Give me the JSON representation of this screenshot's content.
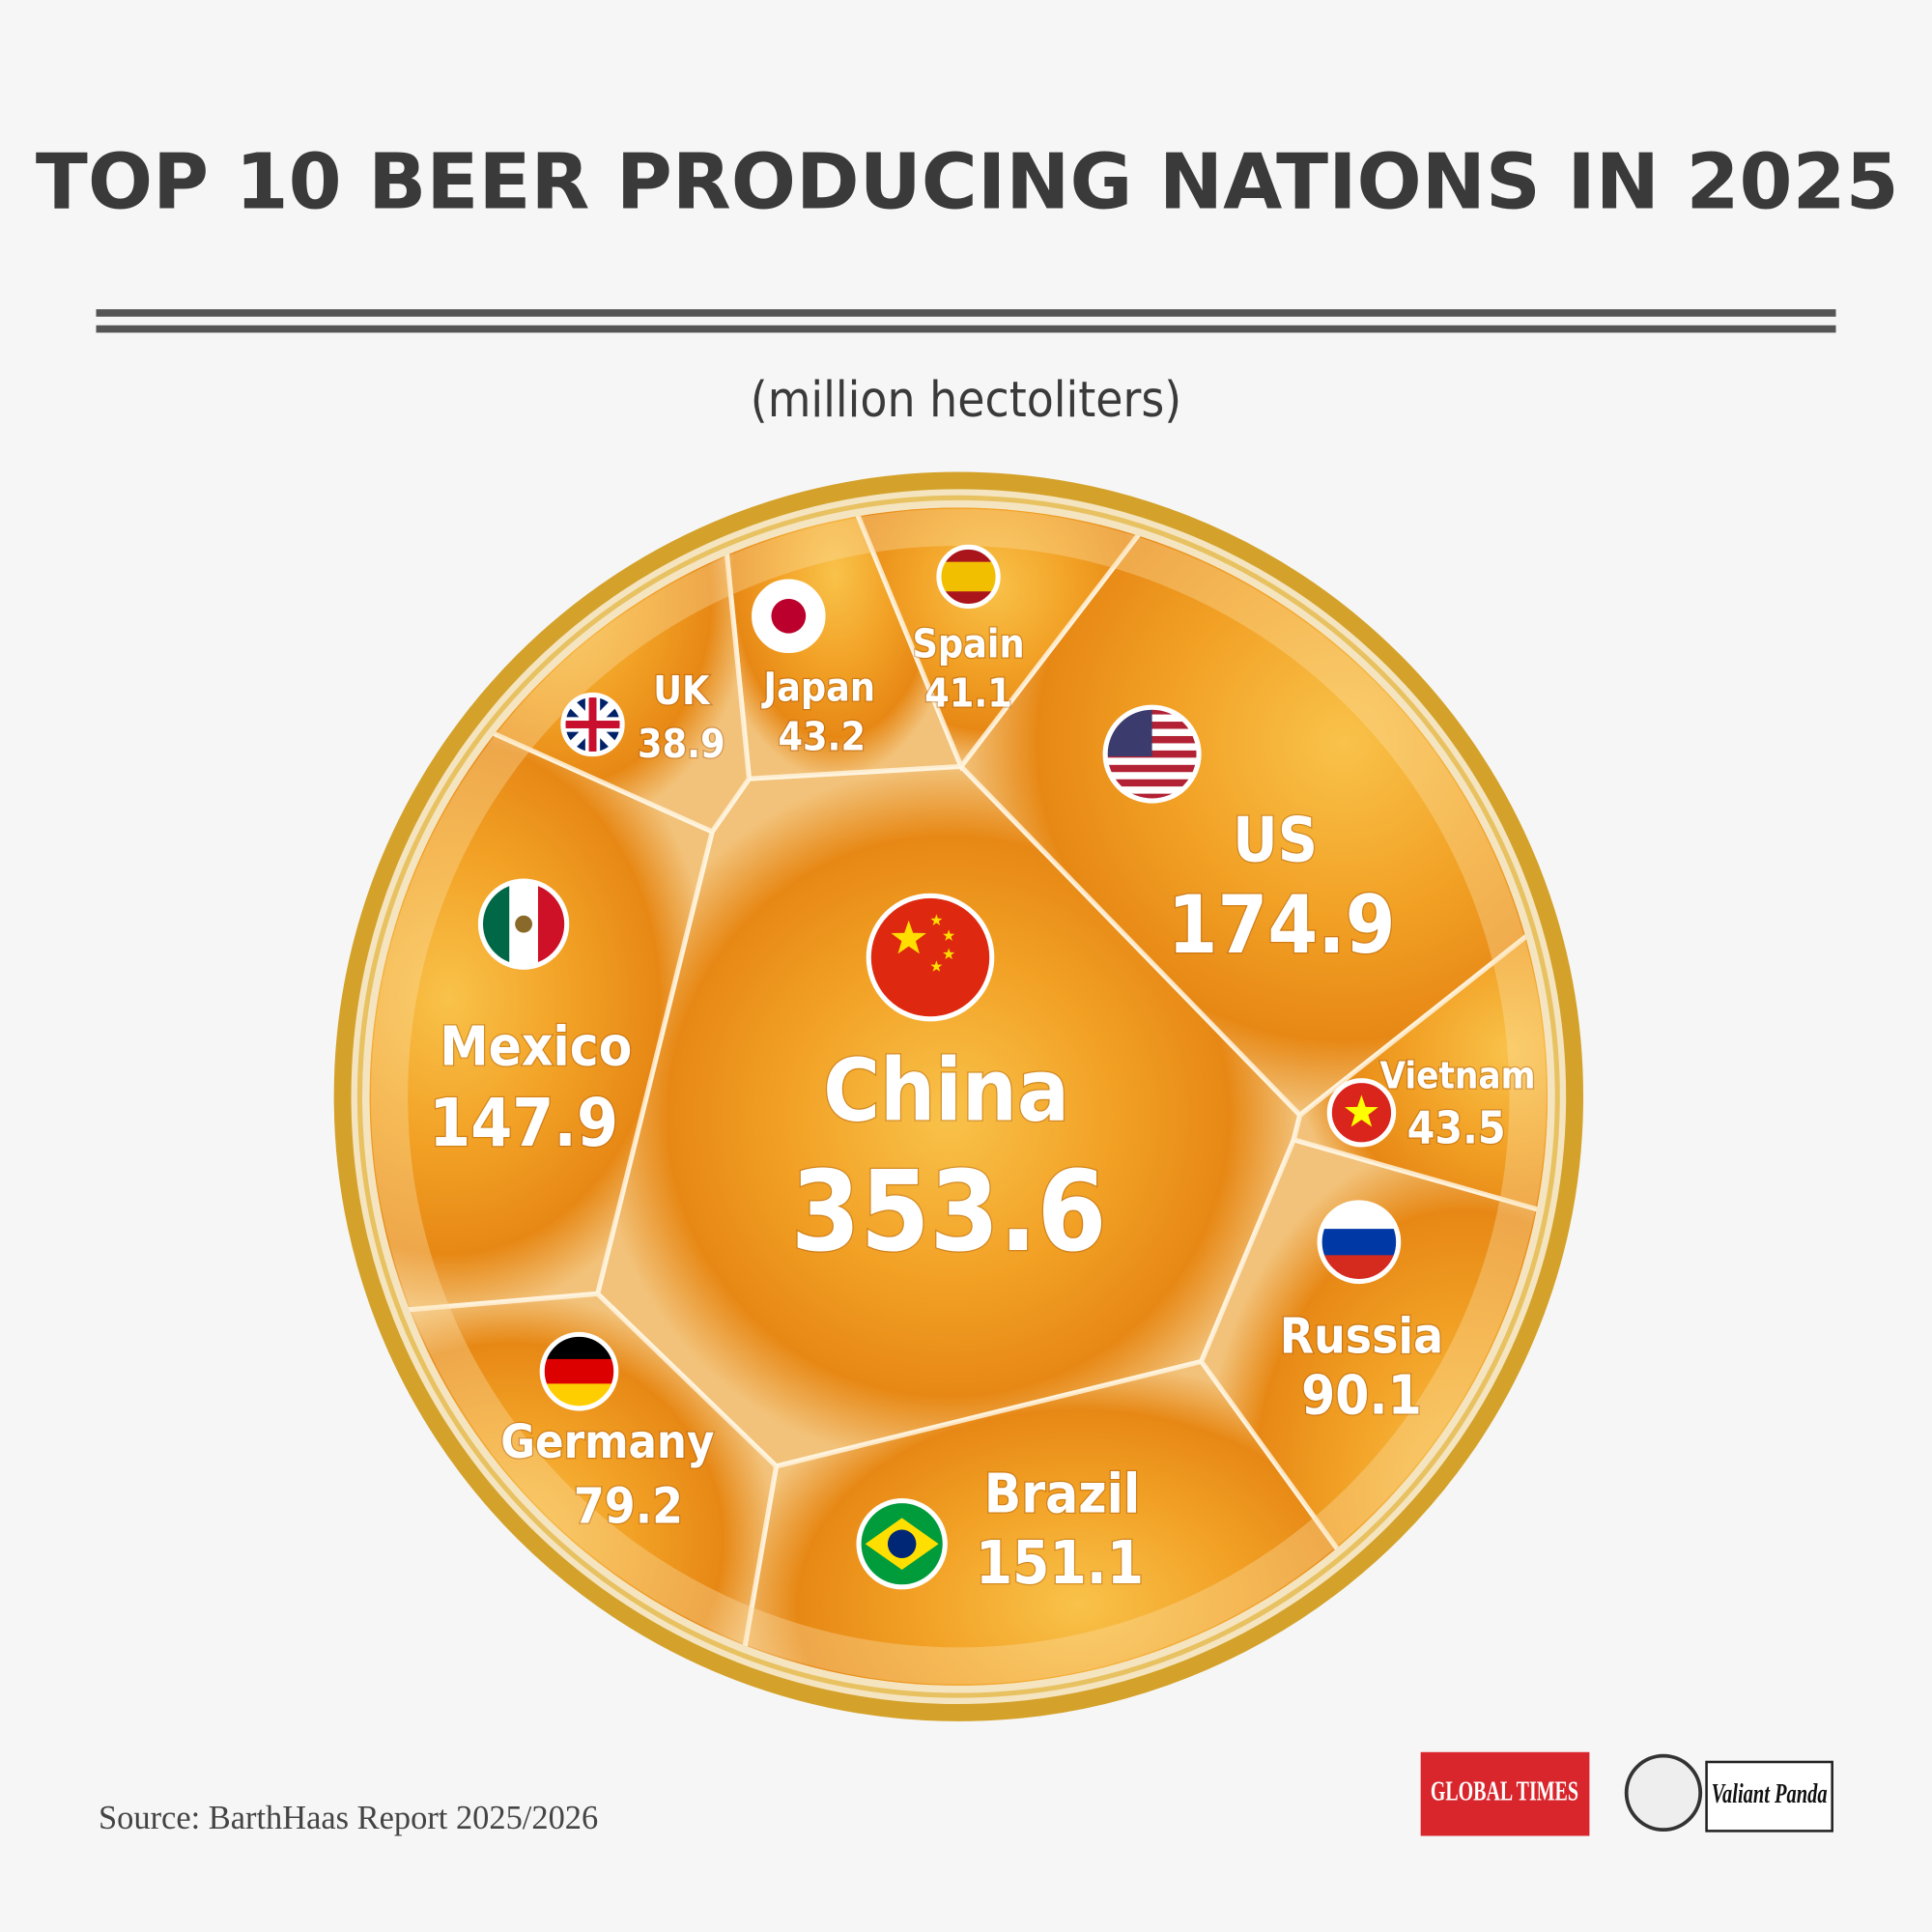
{
  "chart_data": {
    "type": "voronoi",
    "title": "TOP 10 BEER PRODUCING NATIONS IN 2025",
    "subtitle": "(million hectoliters)",
    "categories": [
      "China",
      "US",
      "Brazil",
      "Mexico",
      "Russia",
      "Germany",
      "Vietnam",
      "Japan",
      "Spain",
      "UK"
    ],
    "values": [
      353.6,
      174.9,
      151.1,
      147.9,
      90.1,
      79.2,
      43.5,
      43.2,
      41.1,
      38.9
    ],
    "source": "Source: BarthHaas Report 2025/2026",
    "logos": [
      "GLOBAL TIMES",
      "Valiant Panda"
    ]
  }
}
